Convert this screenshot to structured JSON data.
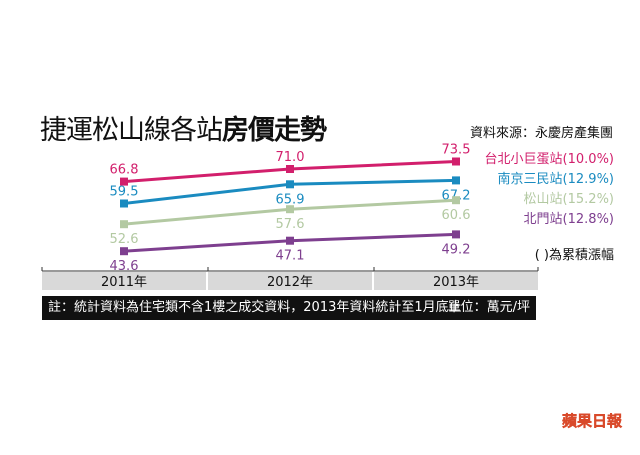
{
  "title_plain": "捷運松山線各站",
  "title_bold": "房價走勢",
  "source": "資料來源：永慶房產集團",
  "note": "( )為累積漲幅",
  "footnote": "註：統計資料為住宅類不含1樓之成交資料，2013年資料統計至1月底止",
  "unit": "單位：萬元/坪",
  "logo": "蘋果日報",
  "chart_data": {
    "type": "line",
    "title": "捷運松山線各站房價走勢",
    "xlabel": "",
    "ylabel": "萬元/坪",
    "categories": [
      "2011年",
      "2012年",
      "2013年"
    ],
    "ylim": [
      40,
      76
    ],
    "grid": false,
    "legend_position": "right",
    "series": [
      {
        "name": "台北小巨蛋站",
        "change": "(10.0%)",
        "color": "#d21f6c",
        "values": [
          66.8,
          71.0,
          73.5
        ],
        "label_pos": [
          "above",
          "above",
          "above"
        ]
      },
      {
        "name": "南京三民站",
        "change": "(12.9%)",
        "color": "#1a8bc0",
        "values": [
          59.5,
          65.9,
          67.2
        ],
        "label_pos": [
          "above",
          "below",
          "below"
        ]
      },
      {
        "name": "松山站",
        "change": "(15.2%)",
        "color": "#b3c9a2",
        "values": [
          52.6,
          57.6,
          60.6
        ],
        "label_pos": [
          "below",
          "below",
          "below"
        ]
      },
      {
        "name": "北門站",
        "change": "(12.8%)",
        "color": "#7e3f8f",
        "values": [
          43.6,
          47.1,
          49.2
        ],
        "label_pos": [
          "below",
          "below",
          "below"
        ]
      }
    ]
  }
}
